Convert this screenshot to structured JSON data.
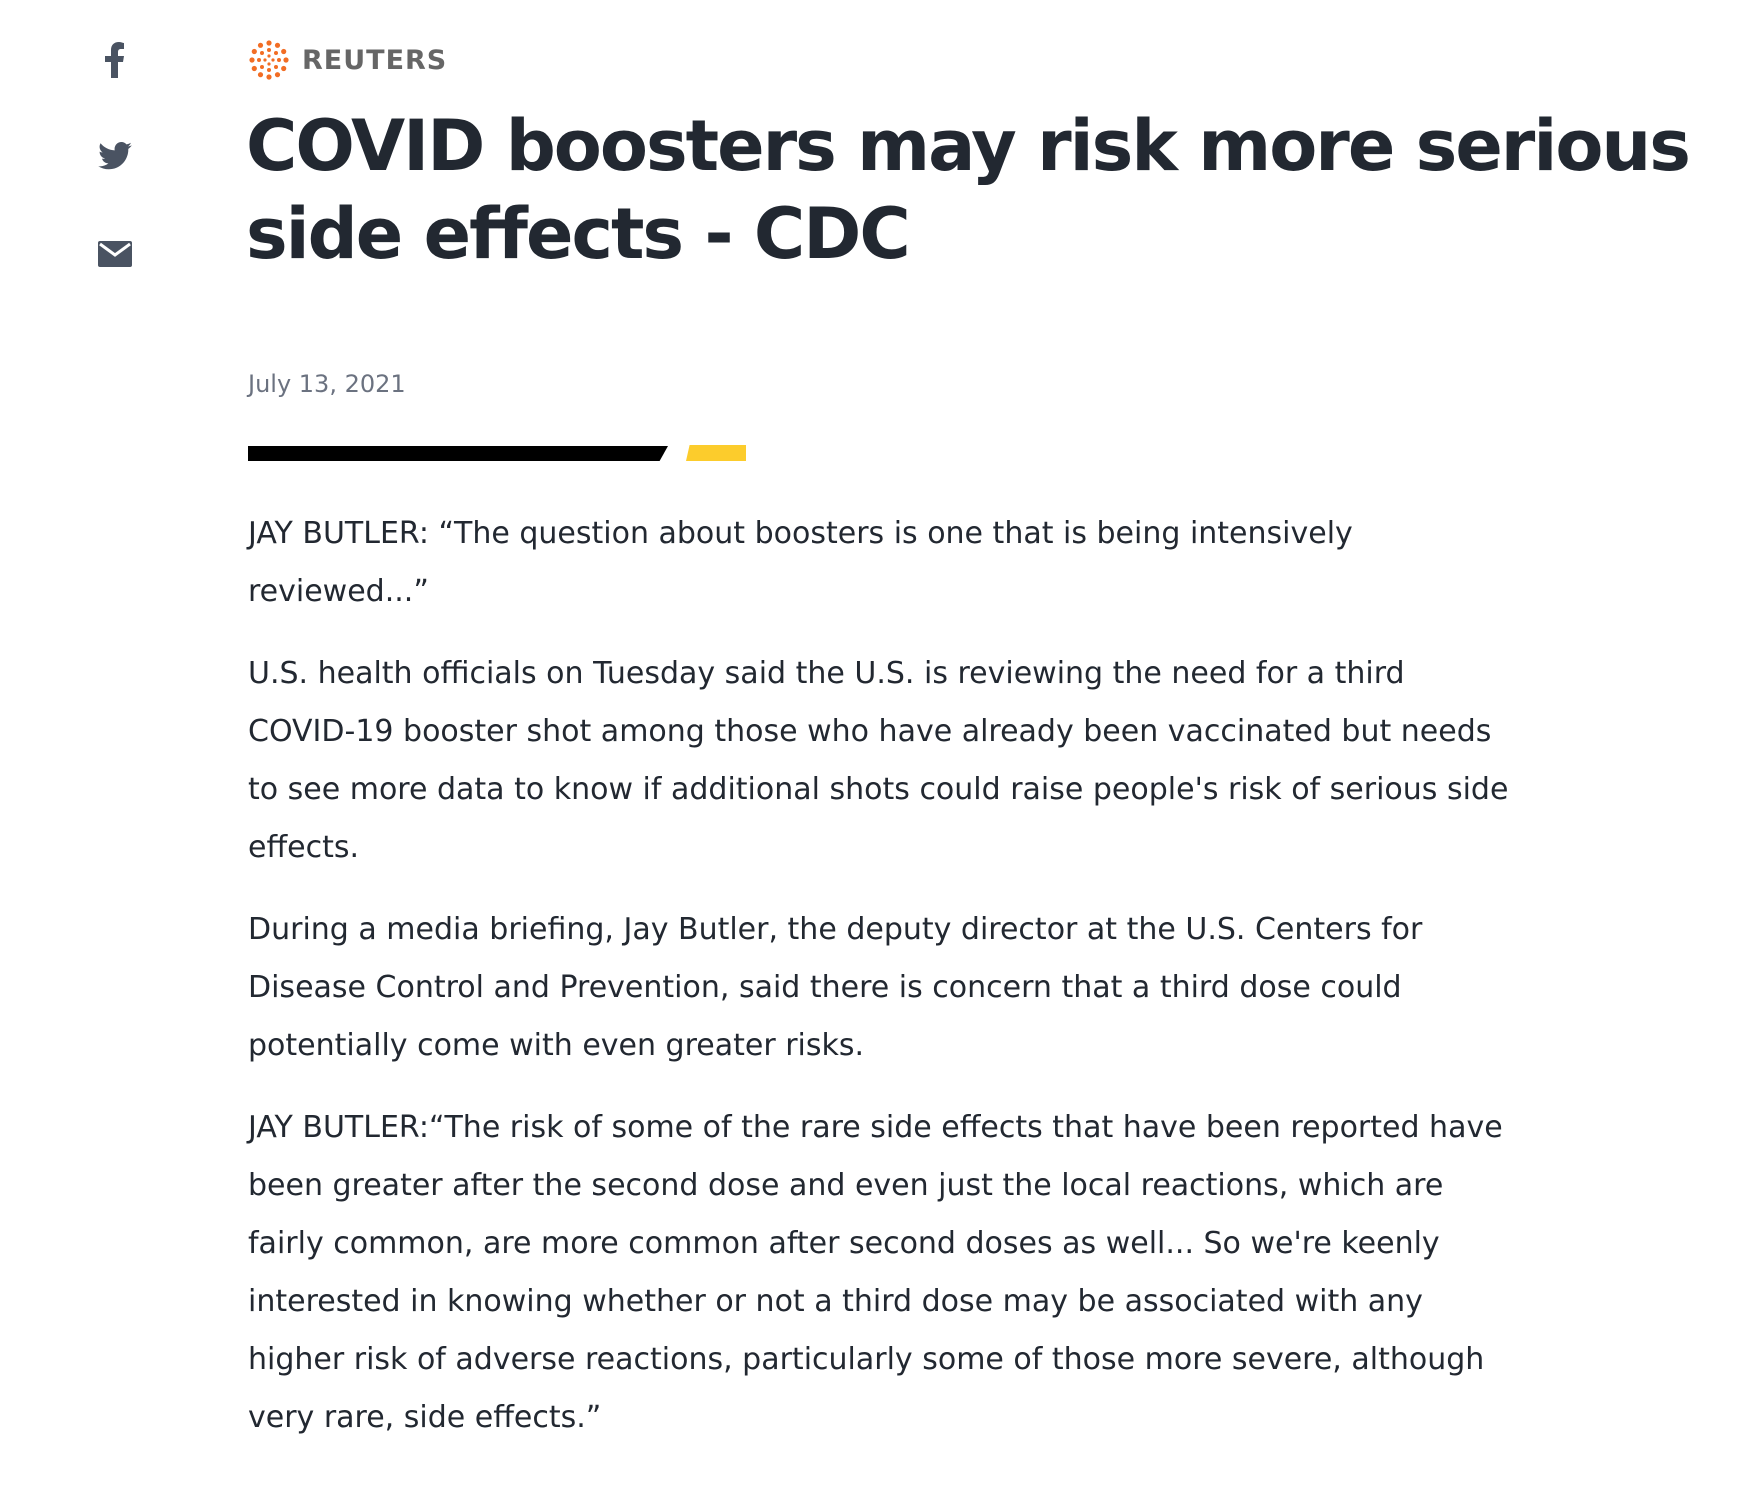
{
  "share": {
    "facebook_icon": "facebook-icon",
    "twitter_icon": "twitter-icon",
    "email_icon": "email-icon"
  },
  "brand": {
    "name": "REUTERS",
    "logo_icon": "reuters-logo-icon",
    "logo_color": "#f26d24"
  },
  "article": {
    "headline": "COVID boosters may risk more serious side effects - CDC",
    "date": "July 13, 2021",
    "divider_colors": {
      "primary": "#000000",
      "accent": "#fccc2c"
    },
    "paragraphs": [
      "JAY BUTLER: “The question about boosters is one that is being intensively reviewed...”",
      "U.S. health officials on Tuesday said the U.S. is reviewing the need for a third COVID-19 booster shot among those who have already been vaccinated but needs to see more data to know if additional shots could raise people's risk of serious side effects.",
      "During a media briefing, Jay Butler, the deputy director at the U.S. Centers for Disease Control and Prevention, said there is concern that a third dose could potentially come with even greater risks.",
      "JAY BUTLER:“The risk of some of the rare side effects that have been reported have been greater after the second dose and even just the local reactions, which are fairly common, are more common after second doses as well... So we're keenly interested in knowing whether or not a third dose may be associated with any higher risk of adverse reactions, particularly some of those more severe, although very rare, side effects.”"
    ]
  }
}
